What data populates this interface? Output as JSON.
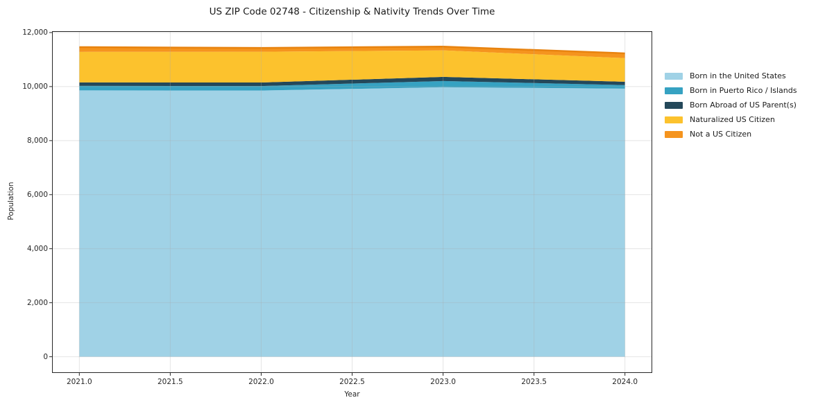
{
  "title": "US ZIP Code 02748 - Citizenship & Nativity Trends Over Time",
  "axes": {
    "xlabel": "Year",
    "ylabel": "Population"
  },
  "chart_data": {
    "type": "area",
    "stacked": true,
    "title": "US ZIP Code 02748 - Citizenship & Nativity Trends Over Time",
    "xlabel": "Year",
    "ylabel": "Population",
    "x": [
      2021,
      2022,
      2023,
      2024
    ],
    "series": [
      {
        "name": "Born in the United States",
        "color": "#A0D2E6",
        "values": [
          9860,
          9855,
          9975,
          9925
        ]
      },
      {
        "name": "Born in Puerto Rico / Islands",
        "color": "#36A2C2",
        "values": [
          165,
          165,
          230,
          130
        ]
      },
      {
        "name": "Born Abroad of US Parent(s)",
        "color": "#24485A",
        "values": [
          130,
          130,
          155,
          125
        ]
      },
      {
        "name": "Naturalized US Citizen",
        "color": "#FCC22D",
        "values": [
          1130,
          1140,
          980,
          875
        ]
      },
      {
        "name": "Not a US Citizen",
        "color": "#F5941E",
        "values": [
          175,
          140,
          140,
          175
        ]
      }
    ],
    "stacked_totals": [
      11460,
      11430,
      11480,
      11230
    ],
    "top_edge_color": "#E8830F",
    "xlim": [
      2020.85,
      2024.15
    ],
    "ylim": [
      -600,
      12050
    ],
    "x_ticks": [
      {
        "v": 2021.0,
        "label": "2021.0"
      },
      {
        "v": 2021.5,
        "label": "2021.5"
      },
      {
        "v": 2022.0,
        "label": "2022.0"
      },
      {
        "v": 2022.5,
        "label": "2022.5"
      },
      {
        "v": 2023.0,
        "label": "2023.0"
      },
      {
        "v": 2023.5,
        "label": "2023.5"
      },
      {
        "v": 2024.0,
        "label": "2024.0"
      }
    ],
    "y_ticks": [
      {
        "v": 0,
        "label": "0"
      },
      {
        "v": 2000,
        "label": "2,000"
      },
      {
        "v": 4000,
        "label": "4,000"
      },
      {
        "v": 6000,
        "label": "6,000"
      },
      {
        "v": 8000,
        "label": "8,000"
      },
      {
        "v": 10000,
        "label": "10,000"
      },
      {
        "v": 12000,
        "label": "12,000"
      }
    ],
    "grid": true,
    "grid_color": "rgba(170,170,170,0.32)",
    "spine_color": "#262626",
    "legend_position": "right-outside"
  }
}
